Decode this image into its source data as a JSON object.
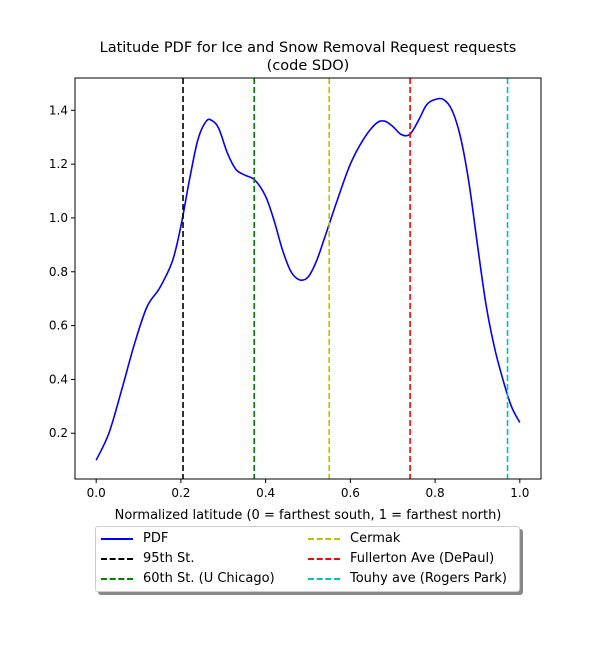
{
  "chart_data": {
    "type": "line",
    "title": "Latitude PDF for Ice and Snow Removal Request  requests",
    "subtitle": "(code SDO)",
    "xlabel": "Normalized latitude (0 = farthest south, 1 = farthest north)",
    "ylabel": "",
    "xlim": [
      -0.05,
      1.05
    ],
    "ylim": [
      0.03,
      1.52
    ],
    "xticks": [
      0.0,
      0.2,
      0.4,
      0.6,
      0.8,
      1.0
    ],
    "xtick_labels": [
      "0.0",
      "0.2",
      "0.4",
      "0.6",
      "0.8",
      "1.0"
    ],
    "yticks": [
      0.2,
      0.4,
      0.6,
      0.8,
      1.0,
      1.2,
      1.4
    ],
    "ytick_labels": [
      "0.2",
      "0.4",
      "0.6",
      "0.8",
      "1.0",
      "1.2",
      "1.4"
    ],
    "grid": false,
    "legend_position": "below plot, two columns",
    "series": [
      {
        "name": "PDF",
        "color": "#0000ff",
        "style": "solid",
        "x": [
          0.0,
          0.03,
          0.06,
          0.09,
          0.12,
          0.15,
          0.18,
          0.2,
          0.22,
          0.24,
          0.26,
          0.275,
          0.29,
          0.31,
          0.33,
          0.35,
          0.375,
          0.4,
          0.42,
          0.44,
          0.46,
          0.48,
          0.5,
          0.52,
          0.54,
          0.57,
          0.6,
          0.63,
          0.66,
          0.68,
          0.7,
          0.72,
          0.74,
          0.76,
          0.78,
          0.8,
          0.82,
          0.84,
          0.86,
          0.88,
          0.9,
          0.92,
          0.94,
          0.96,
          0.98,
          1.0
        ],
        "y": [
          0.1,
          0.2,
          0.36,
          0.53,
          0.67,
          0.74,
          0.84,
          0.97,
          1.14,
          1.29,
          1.36,
          1.36,
          1.33,
          1.24,
          1.18,
          1.16,
          1.14,
          1.08,
          0.99,
          0.88,
          0.8,
          0.77,
          0.78,
          0.84,
          0.93,
          1.07,
          1.2,
          1.29,
          1.35,
          1.36,
          1.34,
          1.31,
          1.31,
          1.36,
          1.42,
          1.44,
          1.44,
          1.4,
          1.3,
          1.13,
          0.9,
          0.68,
          0.52,
          0.4,
          0.3,
          0.24
        ]
      }
    ],
    "vlines": [
      {
        "name": "95th St.",
        "x": 0.205,
        "color": "#000000"
      },
      {
        "name": "60th St. (U Chicago)",
        "x": 0.373,
        "color": "#008000"
      },
      {
        "name": "Cermak",
        "x": 0.55,
        "color": "#bfbf00"
      },
      {
        "name": "Fullerton Ave (DePaul)",
        "x": 0.741,
        "color": "#ff0000"
      },
      {
        "name": "Touhy ave (Rogers Park)",
        "x": 0.971,
        "color": "#00bfbf"
      }
    ]
  }
}
